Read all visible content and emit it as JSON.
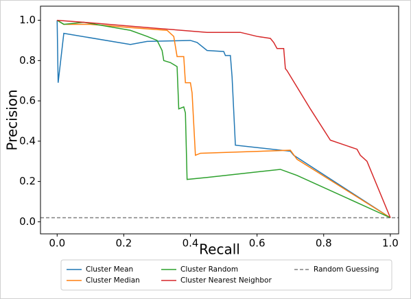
{
  "chart_data": {
    "type": "line",
    "xlabel": "Recall",
    "ylabel": "Precision",
    "xlim": [
      -0.05,
      1.025
    ],
    "ylim": [
      -0.06,
      1.07
    ],
    "xticks": [
      {
        "value": 0,
        "label": "0.0"
      },
      {
        "value": 0.2,
        "label": "0.2"
      },
      {
        "value": 0.4,
        "label": "0.4"
      },
      {
        "value": 0.6,
        "label": "0.6"
      },
      {
        "value": 0.8,
        "label": "0.8"
      },
      {
        "value": 1,
        "label": "1.0"
      }
    ],
    "yticks": [
      {
        "value": 0,
        "label": "0.0"
      },
      {
        "value": 0.2,
        "label": "0.2"
      },
      {
        "value": 0.4,
        "label": "0.4"
      },
      {
        "value": 0.6,
        "label": "0.6"
      },
      {
        "value": 0.8,
        "label": "0.8"
      },
      {
        "value": 1,
        "label": "1.0"
      }
    ],
    "legend": "lower center outside",
    "series": [
      {
        "name": "Cluster Mean",
        "color": "#1f77b4",
        "x": [
          0,
          0.003,
          0.02,
          0.22,
          0.27,
          0.4,
          0.42,
          0.45,
          0.5,
          0.505,
          0.52,
          0.525,
          0.535,
          0.7,
          0.71,
          1.0
        ],
        "values": [
          1.0,
          0.69,
          0.935,
          0.88,
          0.895,
          0.9,
          0.89,
          0.85,
          0.845,
          0.825,
          0.825,
          0.72,
          0.38,
          0.35,
          0.33,
          0.02
        ]
      },
      {
        "name": "Cluster Median",
        "color": "#ff7f0e",
        "x": [
          0,
          0.02,
          0.1,
          0.25,
          0.33,
          0.35,
          0.36,
          0.38,
          0.385,
          0.4,
          0.405,
          0.415,
          0.43,
          0.7,
          0.72,
          1.0
        ],
        "values": [
          1.0,
          0.98,
          0.98,
          0.96,
          0.95,
          0.92,
          0.82,
          0.82,
          0.69,
          0.69,
          0.64,
          0.33,
          0.34,
          0.355,
          0.31,
          0.02
        ]
      },
      {
        "name": "Cluster Random",
        "color": "#2ca02c",
        "x": [
          0,
          0.02,
          0.08,
          0.22,
          0.27,
          0.3,
          0.315,
          0.32,
          0.34,
          0.36,
          0.365,
          0.38,
          0.385,
          0.39,
          0.45,
          0.67,
          0.72,
          1.0
        ],
        "values": [
          1.0,
          0.98,
          0.99,
          0.95,
          0.92,
          0.9,
          0.85,
          0.8,
          0.79,
          0.77,
          0.56,
          0.57,
          0.54,
          0.21,
          0.22,
          0.26,
          0.23,
          0.02
        ]
      },
      {
        "name": "Cluster Nearest Neighbor",
        "color": "#d62728",
        "x": [
          0,
          0.08,
          0.3,
          0.45,
          0.55,
          0.6,
          0.64,
          0.65,
          0.66,
          0.68,
          0.685,
          0.69,
          0.76,
          0.82,
          0.9,
          0.91,
          0.93,
          1.0
        ],
        "values": [
          1.0,
          0.99,
          0.96,
          0.94,
          0.94,
          0.92,
          0.91,
          0.89,
          0.86,
          0.86,
          0.76,
          0.75,
          0.56,
          0.405,
          0.36,
          0.33,
          0.3,
          0.02
        ]
      }
    ],
    "hline": {
      "name": "Random Guessing",
      "value": 0.02,
      "color": "#808080",
      "dashed": true
    }
  }
}
